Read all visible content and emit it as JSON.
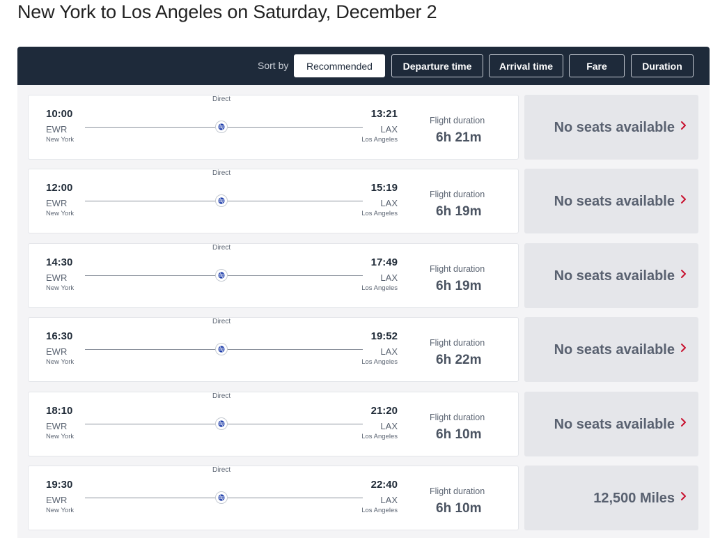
{
  "page": {
    "title": "New York to Los Angeles on Saturday, December 2"
  },
  "sort": {
    "label": "Sort by",
    "options": [
      "Recommended",
      "Departure time",
      "Arrival time",
      "Fare",
      "Duration"
    ],
    "selected": "Recommended"
  },
  "colors": {
    "header_bg": "#1e2a3a",
    "chevron": "#c8102e",
    "fare_bg": "#e5e6ea"
  },
  "flights": [
    {
      "stops": "Direct",
      "dep_time": "10:00",
      "dep_code": "EWR",
      "dep_city": "New York",
      "arr_time": "13:21",
      "arr_code": "LAX",
      "arr_city": "Los Angeles",
      "duration_label": "Flight duration",
      "duration": "6h 21m",
      "fare": "No seats available",
      "airline_icon": "united-globe-icon"
    },
    {
      "stops": "Direct",
      "dep_time": "12:00",
      "dep_code": "EWR",
      "dep_city": "New York",
      "arr_time": "15:19",
      "arr_code": "LAX",
      "arr_city": "Los Angeles",
      "duration_label": "Flight duration",
      "duration": "6h 19m",
      "fare": "No seats available",
      "airline_icon": "united-globe-icon"
    },
    {
      "stops": "Direct",
      "dep_time": "14:30",
      "dep_code": "EWR",
      "dep_city": "New York",
      "arr_time": "17:49",
      "arr_code": "LAX",
      "arr_city": "Los Angeles",
      "duration_label": "Flight duration",
      "duration": "6h 19m",
      "fare": "No seats available",
      "airline_icon": "united-globe-icon"
    },
    {
      "stops": "Direct",
      "dep_time": "16:30",
      "dep_code": "EWR",
      "dep_city": "New York",
      "arr_time": "19:52",
      "arr_code": "LAX",
      "arr_city": "Los Angeles",
      "duration_label": "Flight duration",
      "duration": "6h 22m",
      "fare": "No seats available",
      "airline_icon": "united-globe-icon"
    },
    {
      "stops": "Direct",
      "dep_time": "18:10",
      "dep_code": "EWR",
      "dep_city": "New York",
      "arr_time": "21:20",
      "arr_code": "LAX",
      "arr_city": "Los Angeles",
      "duration_label": "Flight duration",
      "duration": "6h 10m",
      "fare": "No seats available",
      "airline_icon": "united-globe-icon"
    },
    {
      "stops": "Direct",
      "dep_time": "19:30",
      "dep_code": "EWR",
      "dep_city": "New York",
      "arr_time": "22:40",
      "arr_code": "LAX",
      "arr_city": "Los Angeles",
      "duration_label": "Flight duration",
      "duration": "6h 10m",
      "fare": "12,500 Miles",
      "airline_icon": "united-globe-icon"
    }
  ]
}
